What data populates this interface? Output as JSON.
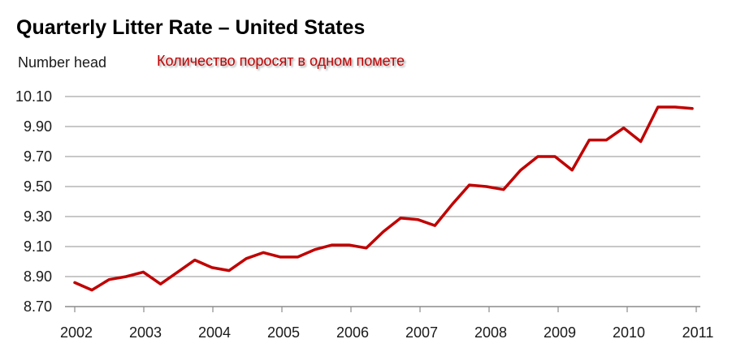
{
  "chart_data": {
    "type": "line",
    "title": "Quarterly Litter Rate – United States",
    "ylabel": "Number head",
    "annotation": "Количество поросят в одном помете",
    "ylim": [
      8.7,
      10.1
    ],
    "yticks": [
      "10.10",
      "9.90",
      "9.70",
      "9.50",
      "9.30",
      "9.10",
      "8.90",
      "8.70"
    ],
    "ytick_values": [
      10.1,
      9.9,
      9.7,
      9.5,
      9.3,
      9.1,
      8.9,
      8.7
    ],
    "xticks": [
      "2002",
      "2003",
      "2004",
      "2005",
      "2006",
      "2007",
      "2008",
      "2009",
      "2010",
      "2011"
    ],
    "grid": true,
    "series_color": "#c00000",
    "values": [
      8.86,
      8.81,
      8.88,
      8.9,
      8.93,
      8.85,
      8.93,
      9.01,
      8.96,
      8.94,
      9.02,
      9.06,
      9.03,
      9.03,
      9.08,
      9.11,
      9.11,
      9.09,
      9.2,
      9.29,
      9.28,
      9.24,
      9.38,
      9.51,
      9.5,
      9.48,
      9.61,
      9.7,
      9.7,
      9.61,
      9.81,
      9.81,
      9.89,
      9.8,
      10.03,
      10.03,
      10.02
    ]
  }
}
